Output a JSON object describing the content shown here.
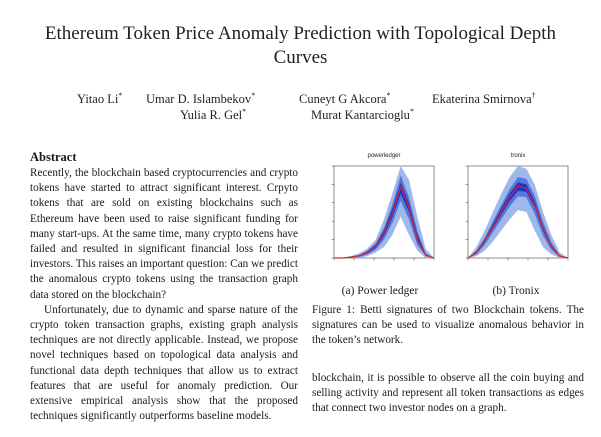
{
  "paper": {
    "title": "Ethereum Token Price Anomaly Prediction with Topological Depth Curves",
    "authors": [
      {
        "name": "Yitao Li",
        "mark": "*"
      },
      {
        "name": "Umar D. Islambekov",
        "mark": "*"
      },
      {
        "name": "Cuneyt G Akcora",
        "mark": "*"
      },
      {
        "name": "Ekaterina Smirnova",
        "mark": "†"
      },
      {
        "name": "Yulia R. Gel",
        "mark": "*"
      },
      {
        "name": "Murat Kantarcioglu",
        "mark": "*"
      }
    ],
    "abstract_heading": "Abstract",
    "abstract_paragraphs": [
      "Recently, the blockchain based cryptocurrencies and crypto tokens have started to attract significant interest. Crpyto tokens that are sold on existing blockchains such as Ethereum have been used to raise significant funding for many start-ups. At the same time, many crypto tokens have failed and resulted in significant financial loss for their investors. This raises an important question: Can we predict the anomalous crypto tokens using the transaction graph data stored on the blockchain?",
      "Unfortunately, due to dynamic and sparse nature of the crypto token transaction graphs, existing graph analysis techniques are not directly applicable. Instead, we propose novel techniques based on topological data analysis and functional data depth techniques that allow us to extract features that are useful for anomaly prediction. Our extensive empirical analysis show that the proposed techniques significantly outperforms baseline models."
    ],
    "figure": {
      "subfigures": [
        {
          "plot_title": "powerledger",
          "caption": "(a) Power ledger"
        },
        {
          "plot_title": "tronix",
          "caption": "(b) Tronix"
        }
      ],
      "caption": "Figure 1: Betti signatures of two Blockchain tokens. The signatures can be used to visualize anomalous behavior in the token’s network."
    },
    "body_text": "blockchain, it is possible to observe all the coin buying and selling activity and represent all token transactions as edges that connect two investor nodes on a graph."
  },
  "chart_data": [
    {
      "type": "area",
      "title": "powerledger",
      "series": [
        {
          "name": "band-outer",
          "color": "#9fb8ea"
        },
        {
          "name": "band-middle",
          "color": "#5577e0"
        },
        {
          "name": "band-inner",
          "color": "#1f33c8"
        },
        {
          "name": "median",
          "color": "#d62828"
        }
      ],
      "x": [
        0,
        1,
        2,
        3,
        4,
        5,
        6,
        7,
        8,
        9,
        10,
        11,
        12
      ],
      "outer_low": [
        0,
        0,
        0,
        0,
        0.02,
        0.06,
        0.12,
        0.25,
        0.45,
        0.25,
        0.08,
        0,
        0
      ],
      "outer_high": [
        0,
        0,
        0.02,
        0.05,
        0.1,
        0.2,
        0.42,
        0.7,
        1.0,
        0.85,
        0.45,
        0.1,
        0
      ],
      "mid_low": [
        0,
        0,
        0,
        0.01,
        0.04,
        0.09,
        0.2,
        0.38,
        0.62,
        0.42,
        0.14,
        0.02,
        0
      ],
      "mid_high": [
        0,
        0,
        0.01,
        0.03,
        0.08,
        0.16,
        0.33,
        0.58,
        0.9,
        0.66,
        0.3,
        0.05,
        0
      ],
      "inner_low": [
        0,
        0,
        0,
        0.02,
        0.05,
        0.11,
        0.24,
        0.44,
        0.7,
        0.5,
        0.18,
        0.03,
        0
      ],
      "inner_high": [
        0,
        0,
        0.01,
        0.03,
        0.07,
        0.14,
        0.3,
        0.53,
        0.82,
        0.6,
        0.25,
        0.04,
        0
      ],
      "median": [
        0,
        0,
        0.01,
        0.025,
        0.06,
        0.12,
        0.27,
        0.48,
        0.78,
        0.55,
        0.2,
        0.03,
        0
      ]
    },
    {
      "type": "area",
      "title": "tronix",
      "series": [
        {
          "name": "band-outer",
          "color": "#9fb8ea"
        },
        {
          "name": "band-middle",
          "color": "#5577e0"
        },
        {
          "name": "band-inner",
          "color": "#1f33c8"
        },
        {
          "name": "median",
          "color": "#d62828"
        }
      ],
      "x": [
        0,
        1,
        2,
        3,
        4,
        5,
        6,
        7,
        8,
        9,
        10,
        11,
        12
      ],
      "outer_low": [
        0,
        0.02,
        0.08,
        0.18,
        0.3,
        0.42,
        0.52,
        0.5,
        0.3,
        0.12,
        0.04,
        0,
        0
      ],
      "outer_high": [
        0,
        0.12,
        0.3,
        0.5,
        0.7,
        0.88,
        1.0,
        0.97,
        0.8,
        0.5,
        0.25,
        0.06,
        0
      ],
      "mid_low": [
        0,
        0.04,
        0.14,
        0.28,
        0.42,
        0.56,
        0.67,
        0.66,
        0.48,
        0.24,
        0.09,
        0.01,
        0
      ],
      "mid_high": [
        0,
        0.08,
        0.22,
        0.4,
        0.58,
        0.75,
        0.88,
        0.86,
        0.68,
        0.4,
        0.17,
        0.03,
        0
      ],
      "inner_low": [
        0,
        0.05,
        0.17,
        0.32,
        0.47,
        0.62,
        0.73,
        0.72,
        0.55,
        0.3,
        0.11,
        0.02,
        0
      ],
      "inner_high": [
        0,
        0.07,
        0.2,
        0.37,
        0.54,
        0.7,
        0.82,
        0.8,
        0.62,
        0.35,
        0.14,
        0.03,
        0
      ],
      "median": [
        0,
        0.06,
        0.18,
        0.34,
        0.5,
        0.66,
        0.78,
        0.76,
        0.58,
        0.33,
        0.12,
        0.02,
        0
      ]
    }
  ]
}
